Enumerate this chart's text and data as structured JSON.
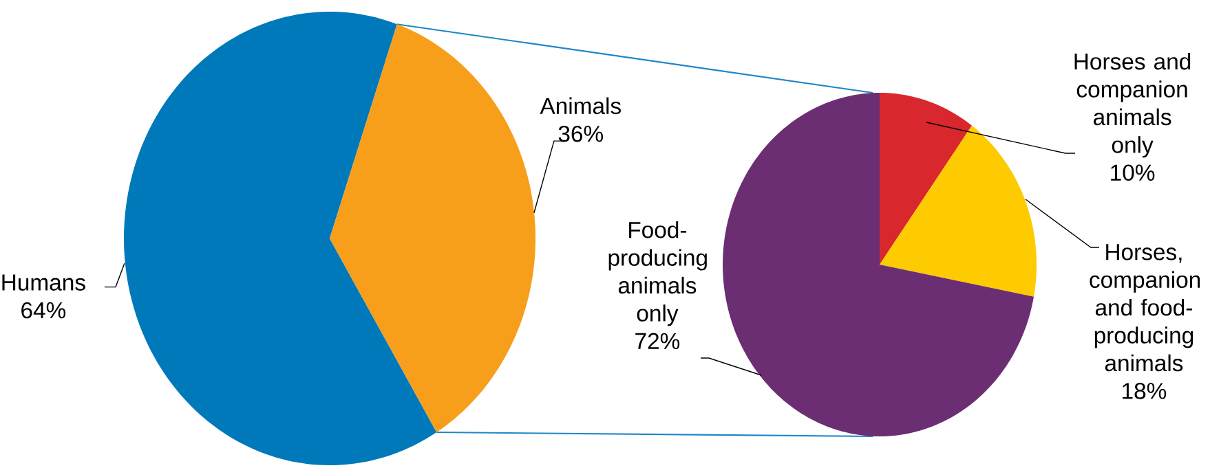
{
  "chart_data": [
    {
      "type": "pie",
      "categories": [
        "Humans",
        "Animals"
      ],
      "values": [
        64,
        36
      ],
      "value_labels": [
        "64%",
        "36%"
      ],
      "colors": [
        "#0079ba",
        "#f79e1b"
      ]
    },
    {
      "type": "pie",
      "categories": [
        "Horses and companion animals only",
        "Horses, companion and food-producing animals",
        "Food-producing animals only"
      ],
      "values": [
        10,
        18,
        72
      ],
      "value_labels": [
        "10%",
        "18%",
        "72%"
      ],
      "colors": [
        "#d9272e",
        "#fecb00",
        "#6b2e72"
      ]
    }
  ]
}
